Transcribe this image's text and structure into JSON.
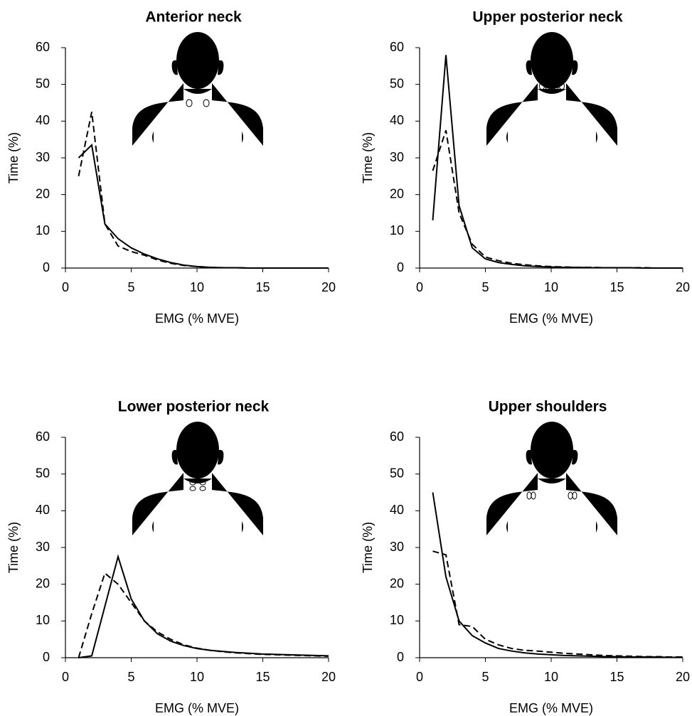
{
  "chart_data": [
    {
      "type": "line",
      "title": "Anterior neck",
      "xlabel": "EMG (% MVE)",
      "ylabel": "Time (%)",
      "x": [
        1,
        2,
        3,
        4,
        5,
        6,
        7,
        8,
        9,
        10,
        11,
        12,
        13,
        14,
        15,
        16,
        17,
        18,
        19,
        20
      ],
      "series": [
        {
          "color": "#000000",
          "line_style": "solid",
          "values": [
            30,
            33.5,
            12,
            8,
            5.5,
            3.8,
            2.5,
            1.5,
            0.8,
            0.4,
            0.2,
            0.1,
            0.1,
            0,
            0,
            0,
            0,
            0,
            0,
            0
          ]
        },
        {
          "color": "#000000",
          "line_style": "dashed",
          "values": [
            25,
            42.5,
            12,
            6,
            4.5,
            3.5,
            2.2,
            1.3,
            0.7,
            0.4,
            0.2,
            0.1,
            0.1,
            0,
            0,
            0,
            0,
            0,
            0,
            0
          ]
        }
      ],
      "xlim": [
        0,
        20
      ],
      "ylim": [
        0,
        60
      ],
      "xticks": [
        0,
        5,
        10,
        15,
        20
      ],
      "yticks": [
        0,
        10,
        20,
        30,
        40,
        50,
        60
      ]
    },
    {
      "type": "line",
      "title": "Upper posterior neck",
      "xlabel": "EMG (% MVE)",
      "ylabel": "Time (%)",
      "x": [
        1,
        2,
        3,
        4,
        5,
        6,
        7,
        8,
        9,
        10,
        11,
        12,
        13,
        14,
        15,
        16,
        17,
        18,
        19,
        20
      ],
      "series": [
        {
          "color": "#000000",
          "line_style": "solid",
          "values": [
            13,
            58,
            17,
            5.5,
            2.5,
            1.5,
            1,
            0.6,
            0.4,
            0.3,
            0.2,
            0.2,
            0.1,
            0.1,
            0.1,
            0.1,
            0,
            0,
            0,
            0
          ]
        },
        {
          "color": "#000000",
          "line_style": "dashed",
          "values": [
            26.5,
            37.5,
            15,
            6.5,
            3,
            2,
            1.3,
            0.9,
            0.6,
            0.4,
            0.3,
            0.2,
            0.2,
            0.1,
            0.1,
            0.1,
            0.1,
            0,
            0,
            0
          ]
        }
      ],
      "xlim": [
        0,
        20
      ],
      "ylim": [
        0,
        60
      ],
      "xticks": [
        0,
        5,
        10,
        15,
        20
      ],
      "yticks": [
        0,
        10,
        20,
        30,
        40,
        50,
        60
      ]
    },
    {
      "type": "line",
      "title": "Lower posterior neck",
      "xlabel": "EMG (% MVE)",
      "ylabel": "Time (%)",
      "x": [
        1,
        2,
        3,
        4,
        5,
        6,
        7,
        8,
        9,
        10,
        11,
        12,
        13,
        14,
        15,
        16,
        17,
        18,
        19,
        20
      ],
      "series": [
        {
          "color": "#000000",
          "line_style": "solid",
          "values": [
            0,
            0.5,
            14,
            27.5,
            16,
            10,
            6.5,
            4.5,
            3.3,
            2.5,
            2,
            1.7,
            1.4,
            1.2,
            1,
            0.9,
            0.8,
            0.7,
            0.6,
            0.5
          ]
        },
        {
          "color": "#000000",
          "line_style": "dashed",
          "values": [
            0,
            12,
            23,
            20,
            15,
            10,
            7,
            5,
            3.5,
            2.6,
            2,
            1.6,
            1.3,
            1.1,
            0.9,
            0.8,
            0.7,
            0.6,
            0.5,
            0.4
          ]
        }
      ],
      "xlim": [
        0,
        20
      ],
      "ylim": [
        0,
        60
      ],
      "xticks": [
        0,
        5,
        10,
        15,
        20
      ],
      "yticks": [
        0,
        10,
        20,
        30,
        40,
        50,
        60
      ]
    },
    {
      "type": "line",
      "title": "Upper shoulders",
      "xlabel": "EMG (% MVE)",
      "ylabel": "Time (%)",
      "x": [
        1,
        2,
        3,
        4,
        5,
        6,
        7,
        8,
        9,
        10,
        11,
        12,
        13,
        14,
        15,
        16,
        17,
        18,
        19,
        20
      ],
      "series": [
        {
          "color": "#000000",
          "line_style": "solid",
          "values": [
            45,
            22,
            10,
            6,
            4,
            2.5,
            1.8,
            1.3,
            1,
            0.8,
            0.6,
            0.5,
            0.4,
            0.3,
            0.3,
            0.2,
            0.2,
            0.2,
            0.1,
            0.1
          ]
        },
        {
          "color": "#000000",
          "line_style": "dashed",
          "values": [
            29,
            28,
            9,
            8.5,
            5,
            3.5,
            2.5,
            2,
            1.8,
            1.5,
            1.2,
            1,
            0.8,
            0.6,
            0.5,
            0.4,
            0.3,
            0.3,
            0.2,
            0.2
          ]
        }
      ],
      "xlim": [
        0,
        20
      ],
      "ylim": [
        0,
        60
      ],
      "xticks": [
        0,
        5,
        10,
        15,
        20
      ],
      "yticks": [
        0,
        10,
        20,
        30,
        40,
        50,
        60
      ]
    }
  ]
}
